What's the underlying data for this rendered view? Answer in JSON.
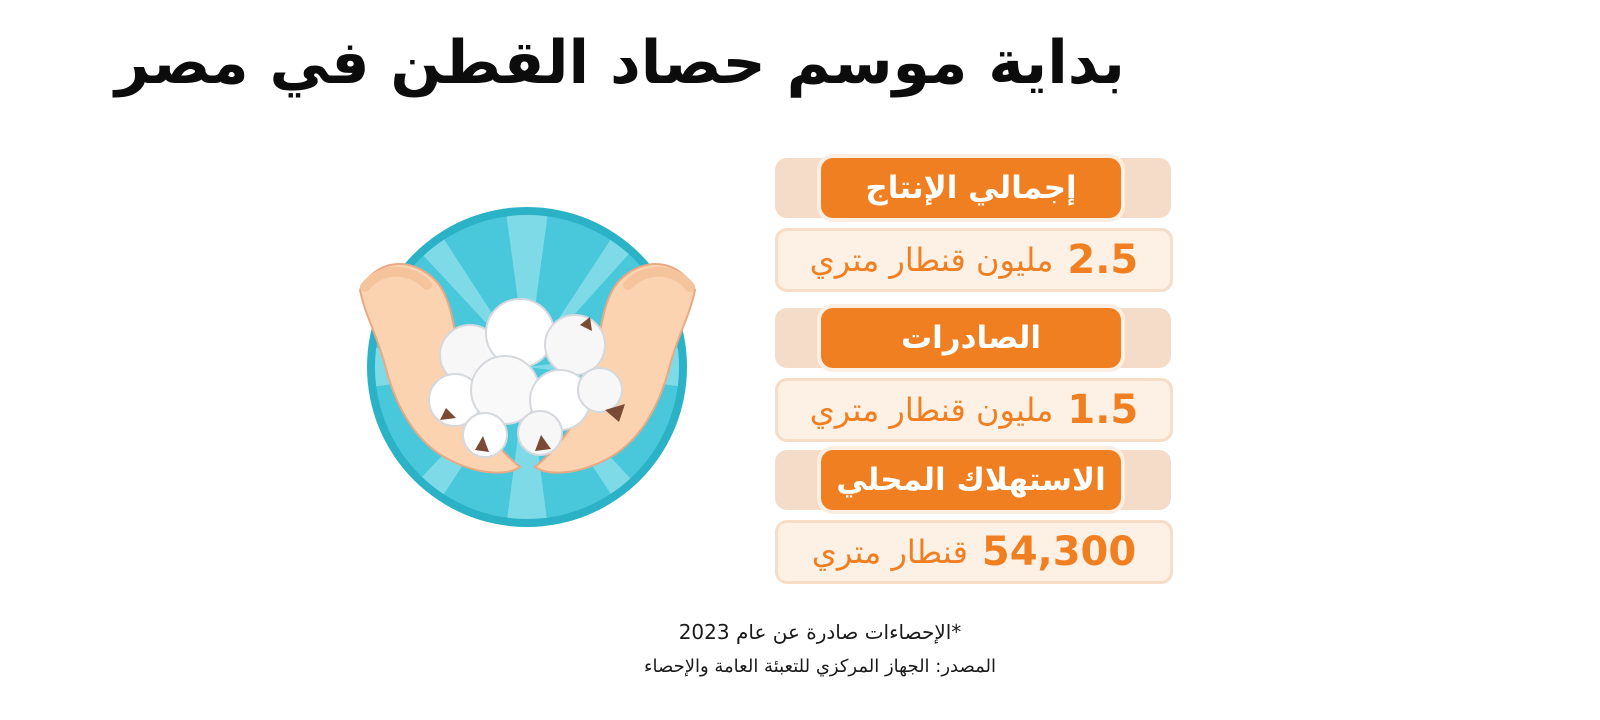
{
  "title": "بداية موسم حصاد القطن في مصر",
  "stats": [
    {
      "label": "إجمالي الإنتاج",
      "value": "2.5",
      "unit": "مليون قنطار متري"
    },
    {
      "label": "الصادرات",
      "value": "1.5",
      "unit": "مليون قنطار متري"
    },
    {
      "label": "الاستهلاك المحلي",
      "value": "54,300",
      "unit": "قنطار متري"
    }
  ],
  "footnote": "*الإحصاءات صادرة عن عام 2023",
  "source": "المصدر: الجهاز المركزي للتعبئة العامة والإحصاء",
  "illustration": {
    "icon": "hands-holding-cotton-icon"
  },
  "colors": {
    "accent": "#f07f22",
    "strip": "#f4dcc8",
    "value_bg": "#fdf0e5",
    "circle": "#44c6d8"
  }
}
